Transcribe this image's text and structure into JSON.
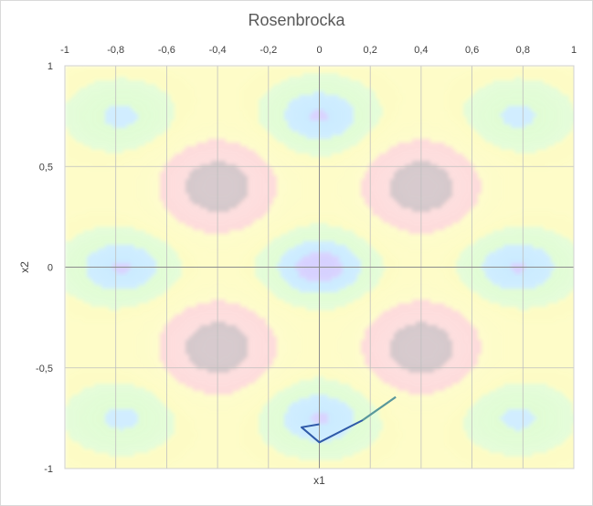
{
  "chart_data": {
    "type": "contour",
    "title": "Rosenbrocka",
    "xlabel": "x1",
    "ylabel": "x2",
    "xlim": [
      -1,
      1
    ],
    "ylim": [
      -1,
      1
    ],
    "x_ticks": [
      "-1",
      "-0,8",
      "-0,6",
      "-0,4",
      "-0,2",
      "0",
      "0,2",
      "0,4",
      "0,6",
      "0,8",
      "1"
    ],
    "y_ticks": [
      "1",
      "0,5",
      "0",
      "-0,5",
      "-1"
    ],
    "x_tick_values": [
      -1,
      -0.8,
      -0.6,
      -0.4,
      -0.2,
      0,
      0.2,
      0.4,
      0.6,
      0.8,
      1
    ],
    "y_tick_values": [
      1,
      0.5,
      0,
      -0.5,
      -1
    ],
    "grid": true,
    "x_axis_position": "top",
    "colormap": [
      "#c9c2ff",
      "#bde6ff",
      "#d9fcc9",
      "#fdfbb6",
      "#fdd2d2",
      "#c9b9bd"
    ],
    "minima": [
      {
        "x": 0,
        "y": 0.75,
        "value": 0.15
      },
      {
        "x": 0,
        "y": 0,
        "value": 0.05
      },
      {
        "x": 0,
        "y": -0.75,
        "value": 0.15
      },
      {
        "x": -0.78,
        "y": 0.75,
        "value": 0.3
      },
      {
        "x": 0.78,
        "y": 0.75,
        "value": 0.3
      },
      {
        "x": -0.78,
        "y": 0,
        "value": 0.15
      },
      {
        "x": 0.78,
        "y": 0,
        "value": 0.15
      },
      {
        "x": -0.78,
        "y": -0.75,
        "value": 0.3
      },
      {
        "x": 0.78,
        "y": -0.75,
        "value": 0.3
      }
    ],
    "maxima": [
      {
        "x": -0.4,
        "y": 0.4,
        "value": 0.95
      },
      {
        "x": 0.4,
        "y": 0.4,
        "value": 0.95
      },
      {
        "x": -0.4,
        "y": -0.4,
        "value": 0.95
      },
      {
        "x": 0.4,
        "y": -0.4,
        "value": 0.95
      }
    ],
    "series": [
      {
        "color": "#2f5aa8",
        "points": [
          [
            0.3,
            -0.645
          ],
          [
            0.17,
            -0.76
          ],
          [
            0,
            -0.87
          ],
          [
            -0.07,
            -0.795
          ],
          [
            0,
            -0.78
          ]
        ]
      }
    ]
  }
}
